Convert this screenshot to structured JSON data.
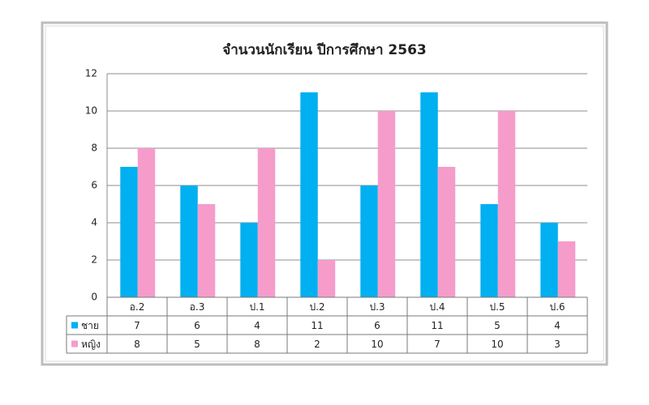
{
  "chart_data": {
    "type": "bar",
    "title": "จำนวนนักเรียน ปีการศึกษา 2563",
    "categories": [
      "อ.2",
      "อ.3",
      "ป.1",
      "ป.2",
      "ป.3",
      "ป.4",
      "ป.5",
      "ป.6"
    ],
    "series": [
      {
        "name": "ชาย",
        "color": "#00b0f0",
        "values": [
          7,
          6,
          4,
          11,
          6,
          11,
          5,
          4
        ]
      },
      {
        "name": "หญิง",
        "color": "#f59ccb",
        "values": [
          8,
          5,
          8,
          2,
          10,
          7,
          10,
          3
        ]
      }
    ],
    "ylim": [
      0,
      12
    ],
    "yticks": [
      0,
      2,
      4,
      6,
      8,
      10,
      12
    ],
    "grid": true,
    "data_table": true
  }
}
